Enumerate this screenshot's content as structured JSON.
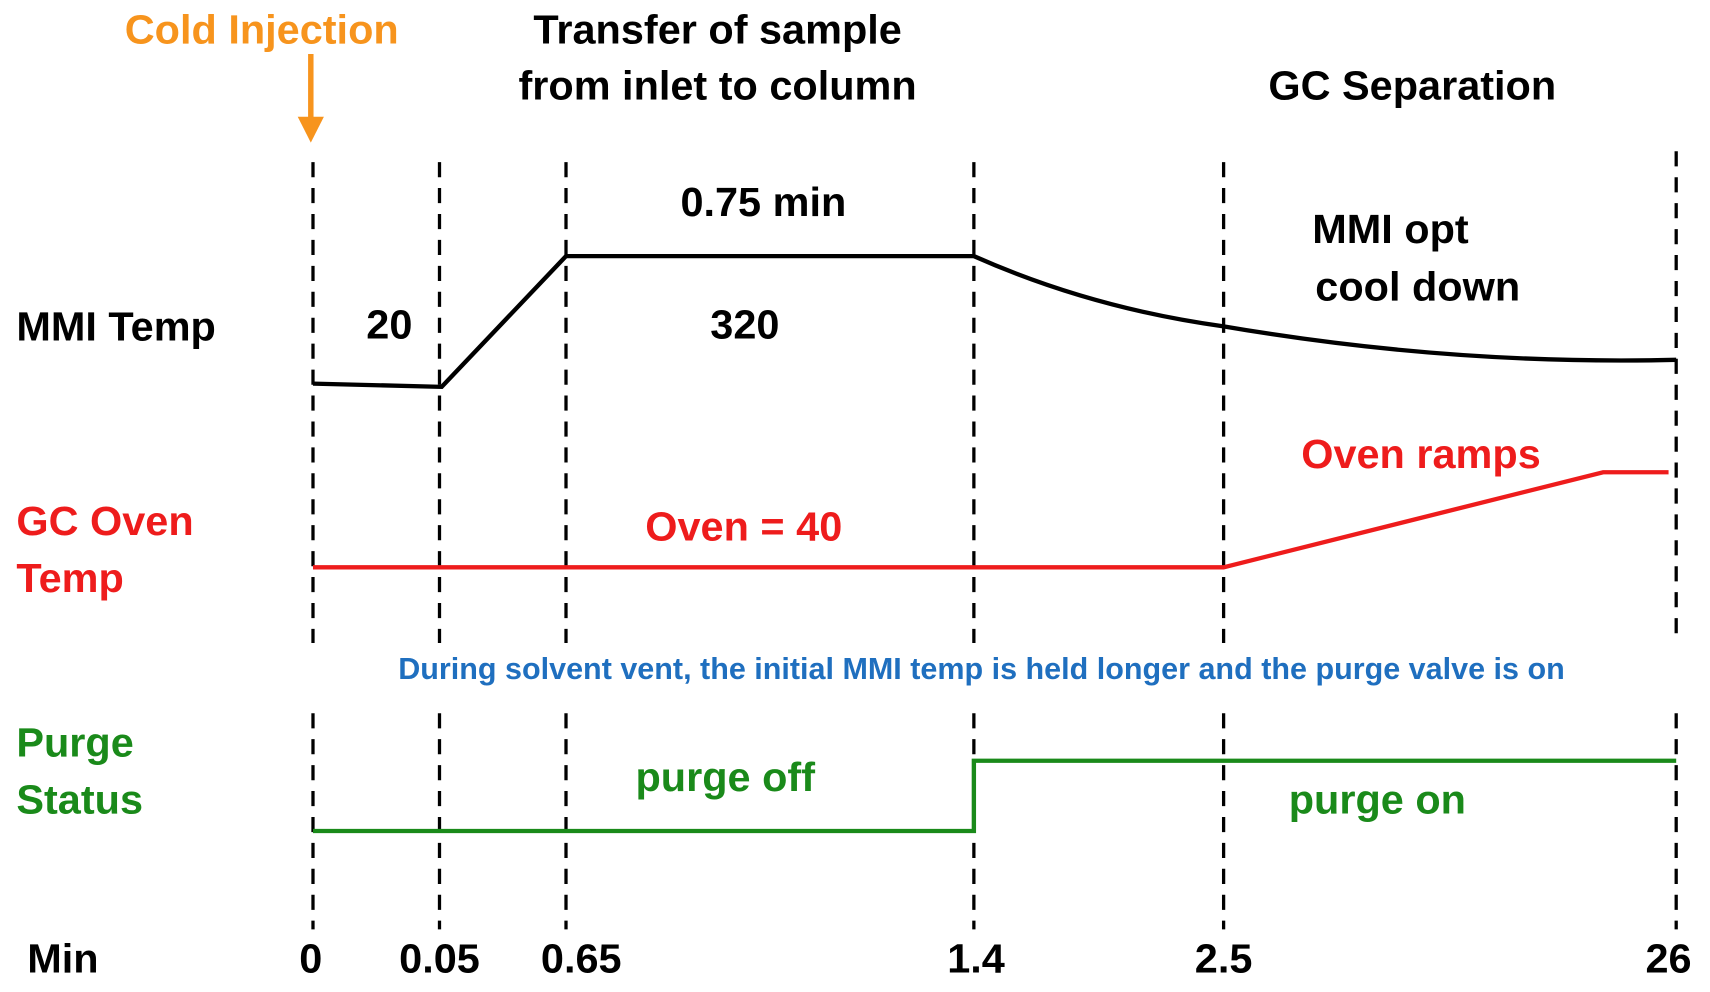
{
  "header": {
    "cold_injection": "Cold Injection",
    "transfer": [
      "Transfer of sample",
      "from inlet to column"
    ],
    "separation": "GC Separation"
  },
  "mmi": {
    "label": "MMI Temp",
    "initial": "20",
    "hold_time": "0.75 min",
    "hold": "320",
    "cooldown": [
      "MMI opt",
      "cool down"
    ]
  },
  "oven": {
    "label": [
      "GC Oven",
      "Temp"
    ],
    "hold": "Oven = 40",
    "ramp": "Oven ramps"
  },
  "note": "During solvent vent, the initial MMI temp is held longer and the purge valve is on",
  "purge": {
    "label": [
      "Purge",
      "Status"
    ],
    "off": "purge off",
    "on": "purge on"
  },
  "time_axis": {
    "label": "Min",
    "ticks": [
      "0",
      "0.05",
      "0.65",
      "1.4",
      "2.5",
      "26"
    ]
  }
}
